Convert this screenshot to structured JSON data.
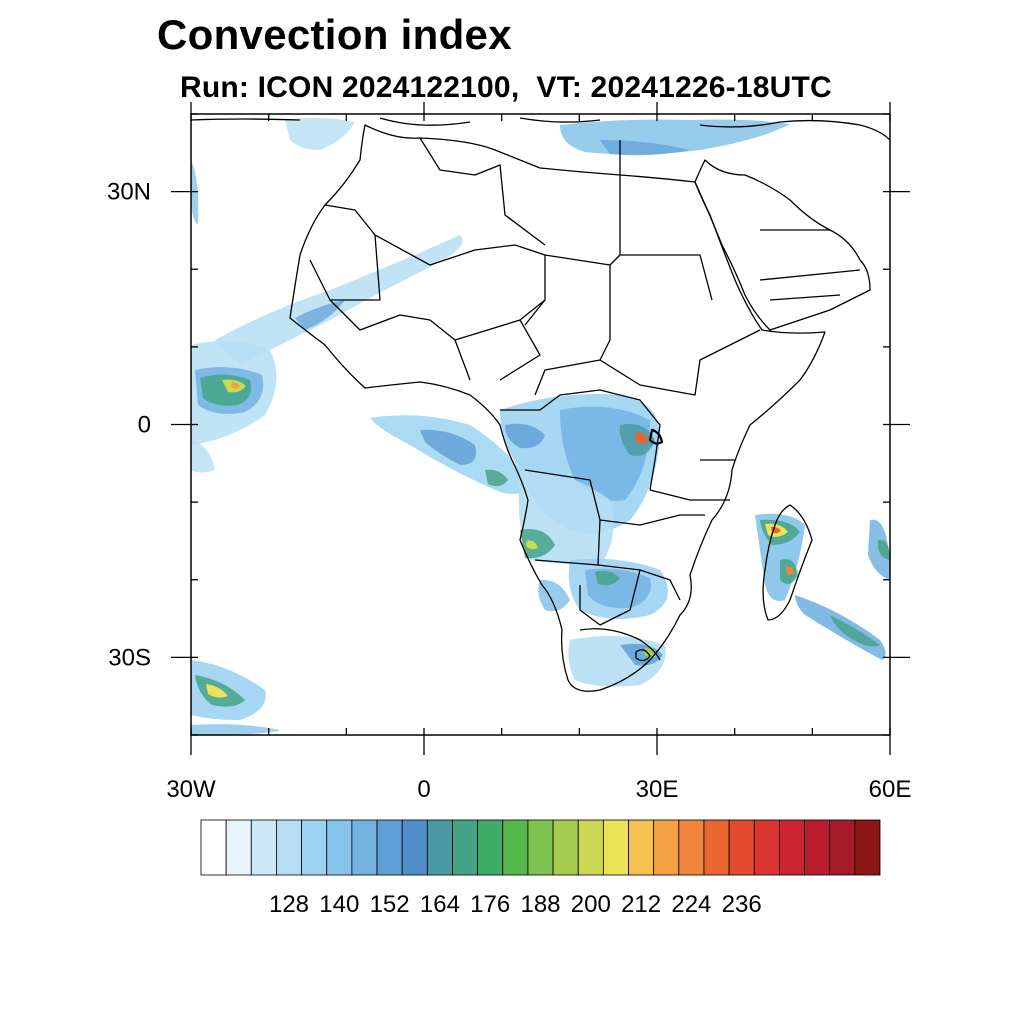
{
  "title": "Convection index",
  "subtitle": "Run: ICON 2024122100,  VT: 20241226-18UTC",
  "map": {
    "lon_range": [
      -30,
      60
    ],
    "lat_range": [
      -40,
      40
    ],
    "x_ticks": [
      {
        "lon": -30,
        "label": "30W"
      },
      {
        "lon": 0,
        "label": "0"
      },
      {
        "lon": 30,
        "label": "30E"
      },
      {
        "lon": 60,
        "label": "60E"
      }
    ],
    "y_ticks": [
      {
        "lat": 30,
        "label": "30N"
      },
      {
        "lat": 0,
        "label": "0"
      },
      {
        "lat": -30,
        "label": "30S"
      }
    ],
    "minor_step_deg": 10
  },
  "colorbar": {
    "colors": [
      "#ffffff",
      "#e8f4fb",
      "#cde9f7",
      "#b5def4",
      "#9cd3f2",
      "#85c3ea",
      "#72b3e2",
      "#5f9fd6",
      "#4f8ec8",
      "#4a9aa6",
      "#45a386",
      "#40ad66",
      "#55b84d",
      "#7ec24f",
      "#a7cd50",
      "#cbd852",
      "#ece458",
      "#f5c14f",
      "#f3a142",
      "#ef843a",
      "#e96633",
      "#e44a2e",
      "#db3530",
      "#cc2330",
      "#b91c2c",
      "#a61a27",
      "#8c1515"
    ],
    "labels": [
      "128",
      "140",
      "152",
      "164",
      "176",
      "188",
      "200",
      "212",
      "224",
      "236"
    ],
    "label_slots": [
      2,
      4,
      6,
      8,
      10,
      12,
      14,
      16,
      18,
      20
    ]
  }
}
